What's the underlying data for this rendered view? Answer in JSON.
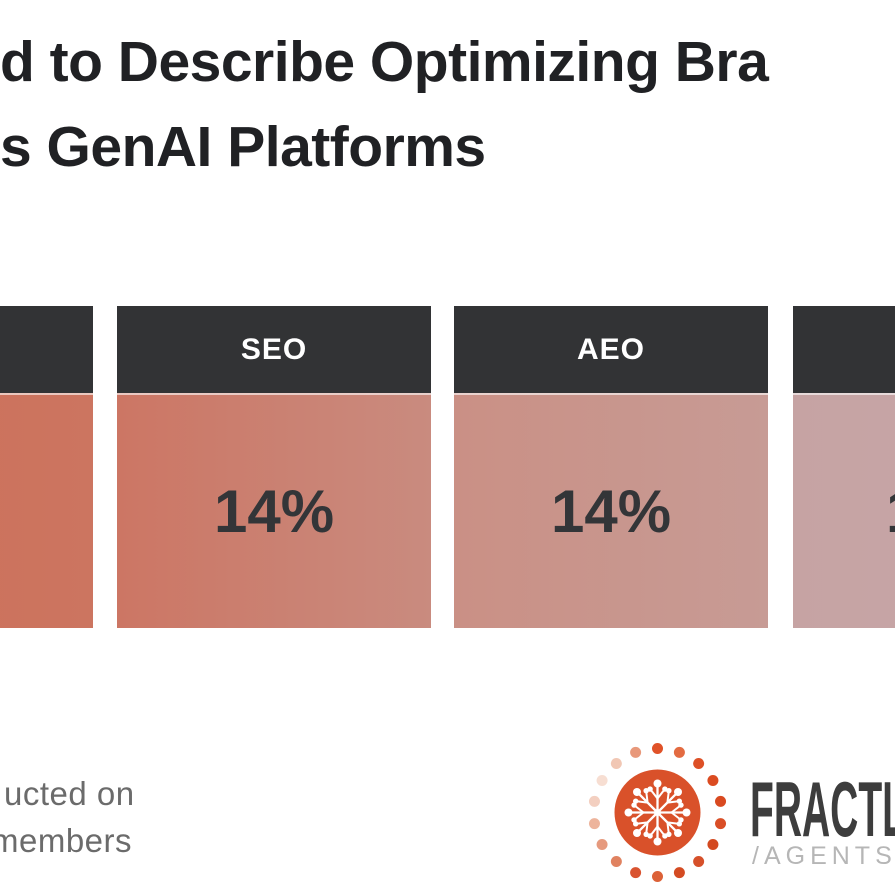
{
  "title": {
    "line1": "d to Describe Optimizing Bra",
    "line2": "s GenAI Platforms"
  },
  "cards": [
    {
      "label": "",
      "value": "",
      "body_from": "#ce6e57",
      "body_to": "#cc7560"
    },
    {
      "label": "SEO",
      "value": "14%",
      "body_from": "#cc7664",
      "body_to": "#c98b7f"
    },
    {
      "label": "AEO",
      "value": "14%",
      "body_from": "#ca9085",
      "body_to": "#c79b95"
    },
    {
      "label": "",
      "value": "1",
      "body_from": "#c6a3a3",
      "body_to": "#c5a8aa"
    }
  ],
  "footer": {
    "line1": "ucted on",
    "line2": "members"
  },
  "logo": {
    "brand": "FRACTL",
    "sub": "/AGENTS",
    "circle_color": "#d9512a",
    "flake_color": "#ffffff",
    "dot_colors": [
      "#e05228",
      "#e36b41",
      "#dd5026",
      "#db4b21",
      "#d94a20",
      "#d94e26",
      "#d34920",
      "#d6502a",
      "#d44b22",
      "#dc6137",
      "#d95330",
      "#e08260",
      "#e69a7e",
      "#edb49c",
      "#f3cfc0",
      "#f7ded2",
      "#f1c7b4",
      "#e8987a"
    ]
  },
  "colors": {
    "background": "#ffffff",
    "header_bg": "#323335",
    "title_text": "#202124",
    "value_text": "#333538",
    "card_label_text": "#ffffff",
    "footer_text": "#6b6b6b",
    "brand_text": "#3d3d3d",
    "brand_sub_text": "#b6b6b6",
    "logo_orange": "#d9512a"
  },
  "chart_data": {
    "type": "bar",
    "title": "d to Describe Optimizing Bra / s GenAI Platforms (cropped)",
    "categories": [
      "SEO",
      "AEO"
    ],
    "values": [
      14,
      14
    ],
    "unit": "%",
    "legend_position": "none",
    "grid": false
  }
}
